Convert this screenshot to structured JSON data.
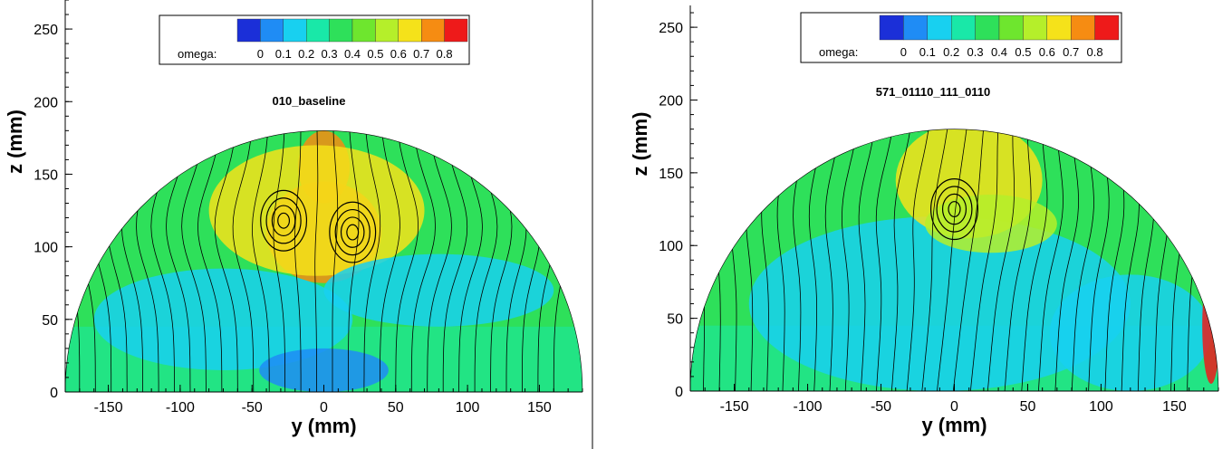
{
  "chart_data": [
    {
      "type": "heatmap",
      "title": "010_baseline",
      "xlabel": "y (mm)",
      "ylabel": "z (mm)",
      "xlim": [
        -180,
        180
      ],
      "ylim": [
        0,
        270
      ],
      "xticks": [
        -150,
        -100,
        -50,
        0,
        50,
        100,
        150
      ],
      "yticks": [
        0,
        50,
        100,
        150,
        200,
        250
      ],
      "legend": {
        "label": "omega:",
        "ticks": [
          "0",
          "0.1",
          "0.2",
          "0.3",
          "0.4",
          "0.5",
          "0.6",
          "0.7",
          "0.8"
        ],
        "colors": [
          "#1b2fd8",
          "#1f8cf5",
          "#18d0f0",
          "#19e8a8",
          "#2ee05a",
          "#6ee62e",
          "#b5ef2a",
          "#f5e21a",
          "#f68c12",
          "#ee1a1a"
        ]
      },
      "domain_radius": 180,
      "fields": [
        {
          "y": 0,
          "z": 110,
          "rx": 40,
          "rz": 35,
          "color": "#f68c12"
        },
        {
          "y": 0,
          "z": 155,
          "rx": 18,
          "rz": 25,
          "color": "#f68c12"
        },
        {
          "y": -5,
          "z": 125,
          "rx": 75,
          "rz": 45,
          "color": "#f5e21a"
        },
        {
          "y": -70,
          "z": 50,
          "rx": 90,
          "rz": 35,
          "color": "#18d0f0"
        },
        {
          "y": 80,
          "z": 70,
          "rx": 80,
          "rz": 25,
          "color": "#18d0f0"
        },
        {
          "y": 0,
          "z": 15,
          "rx": 45,
          "rz": 15,
          "color": "#1f8cf5"
        }
      ],
      "vortex_centers": [
        {
          "y": -28,
          "z": 118
        },
        {
          "y": 20,
          "z": 110
        }
      ]
    },
    {
      "type": "heatmap",
      "title": "571_01110_111_0110",
      "xlabel": "y (mm)",
      "ylabel": "z (mm)",
      "xlim": [
        -180,
        180
      ],
      "ylim": [
        0,
        265
      ],
      "xticks": [
        -150,
        -100,
        -50,
        0,
        50,
        100,
        150
      ],
      "yticks": [
        0,
        50,
        100,
        150,
        200,
        250
      ],
      "legend": {
        "label": "omega:",
        "ticks": [
          "0",
          "0.1",
          "0.2",
          "0.3",
          "0.4",
          "0.5",
          "0.6",
          "0.7",
          "0.8"
        ],
        "colors": [
          "#1b2fd8",
          "#1f8cf5",
          "#18d0f0",
          "#19e8a8",
          "#2ee05a",
          "#6ee62e",
          "#b5ef2a",
          "#f5e21a",
          "#f68c12",
          "#ee1a1a"
        ]
      },
      "domain_radius": 180,
      "fields": [
        {
          "y": -10,
          "z": 60,
          "rx": 130,
          "rz": 60,
          "color": "#18d0f0"
        },
        {
          "y": 120,
          "z": 40,
          "rx": 55,
          "rz": 40,
          "color": "#18d0f0"
        },
        {
          "y": 10,
          "z": 145,
          "rx": 50,
          "rz": 40,
          "color": "#f5e21a"
        },
        {
          "y": 25,
          "z": 115,
          "rx": 45,
          "rz": 20,
          "color": "#b5ef2a"
        },
        {
          "y": 175,
          "z": 45,
          "rx": 6,
          "rz": 40,
          "color": "#ee1a1a"
        }
      ],
      "vortex_centers": [
        {
          "y": 0,
          "z": 125
        }
      ]
    }
  ]
}
